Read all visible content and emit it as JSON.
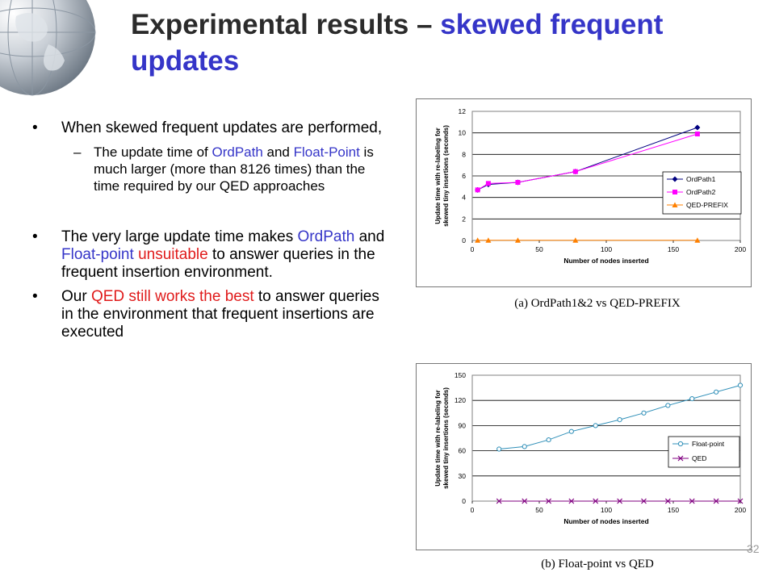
{
  "slide": {
    "title_prefix": "Experimental results – ",
    "title_highlight": "skewed frequent updates",
    "bullets": [
      {
        "text": "When skewed frequent updates are performed,"
      },
      {
        "sub": true,
        "parts": [
          {
            "t": "The update time of ",
            "c": ""
          },
          {
            "t": "OrdPath",
            "c": "blue"
          },
          {
            "t": " and ",
            "c": ""
          },
          {
            "t": "Float-Point",
            "c": "blue"
          },
          {
            "t": " is much larger (more than 8126 times) than the time required by our QED approaches",
            "c": ""
          }
        ]
      },
      {
        "spacer": true
      },
      {
        "parts": [
          {
            "t": "The very large update time makes ",
            "c": ""
          },
          {
            "t": "OrdPath",
            "c": "blue"
          },
          {
            "t": " and ",
            "c": ""
          },
          {
            "t": "Float-point",
            "c": "blue"
          },
          {
            "t": " ",
            "c": ""
          },
          {
            "t": "unsuitable",
            "c": "red"
          },
          {
            "t": " to answer queries in the frequent insertion environment.",
            "c": ""
          }
        ]
      },
      {
        "parts": [
          {
            "t": "Our ",
            "c": ""
          },
          {
            "t": "QED still works the best",
            "c": "red"
          },
          {
            "t": " to answer queries in the environment that frequent insertions are executed",
            "c": ""
          }
        ]
      }
    ],
    "captions": [
      "(a) OrdPath1&2 vs QED-PREFIX",
      "(b) Float-point vs QED"
    ],
    "page_number": "32"
  },
  "chart_data": [
    {
      "type": "line",
      "xlabel": "Number of nodes inserted",
      "ylabel": "Update time with re-labeling for skewed tiny insertions (seconds)",
      "xlim": [
        0,
        200
      ],
      "ylim": [
        0,
        12
      ],
      "xticks": [
        0,
        50,
        100,
        150,
        200
      ],
      "yticks": [
        0,
        2,
        4,
        6,
        8,
        10,
        12
      ],
      "grid": true,
      "legend_position": "right",
      "series": [
        {
          "name": "OrdPath1",
          "color": "#000080",
          "marker": "diamond",
          "x": [
            4,
            12,
            34,
            77,
            168
          ],
          "y": [
            4.7,
            5.2,
            5.4,
            6.4,
            10.5
          ]
        },
        {
          "name": "OrdPath2",
          "color": "#ff00ff",
          "marker": "square",
          "x": [
            4,
            12,
            34,
            77,
            168
          ],
          "y": [
            4.7,
            5.3,
            5.4,
            6.4,
            9.9
          ]
        },
        {
          "name": "QED-PREFIX",
          "color": "#ff8000",
          "marker": "triangle",
          "x": [
            4,
            12,
            34,
            77,
            168
          ],
          "y": [
            0.02,
            0.02,
            0.02,
            0.02,
            0.02
          ]
        }
      ]
    },
    {
      "type": "line",
      "xlabel": "Number of nodes inserted",
      "ylabel": "Update time with re-labeling for skewed tiny insertions (seconds)",
      "xlim": [
        0,
        200
      ],
      "ylim": [
        0,
        150
      ],
      "xticks": [
        0,
        50,
        100,
        150,
        200
      ],
      "yticks": [
        0,
        30,
        60,
        90,
        120,
        150
      ],
      "grid": true,
      "legend_position": "right",
      "series": [
        {
          "name": "Float-point",
          "color": "#2f8fb8",
          "marker": "circle",
          "x": [
            20,
            39,
            57,
            74,
            92,
            110,
            128,
            146,
            164,
            182,
            200
          ],
          "y": [
            62,
            65,
            73,
            83,
            90,
            97,
            105,
            114,
            122,
            130,
            138
          ]
        },
        {
          "name": "QED",
          "color": "#800080",
          "marker": "x",
          "x": [
            20,
            39,
            57,
            74,
            92,
            110,
            128,
            146,
            164,
            182,
            200
          ],
          "y": [
            0.01,
            0.01,
            0.01,
            0.01,
            0.01,
            0.01,
            0.01,
            0.01,
            0.01,
            0.01,
            0.01
          ]
        }
      ]
    }
  ]
}
